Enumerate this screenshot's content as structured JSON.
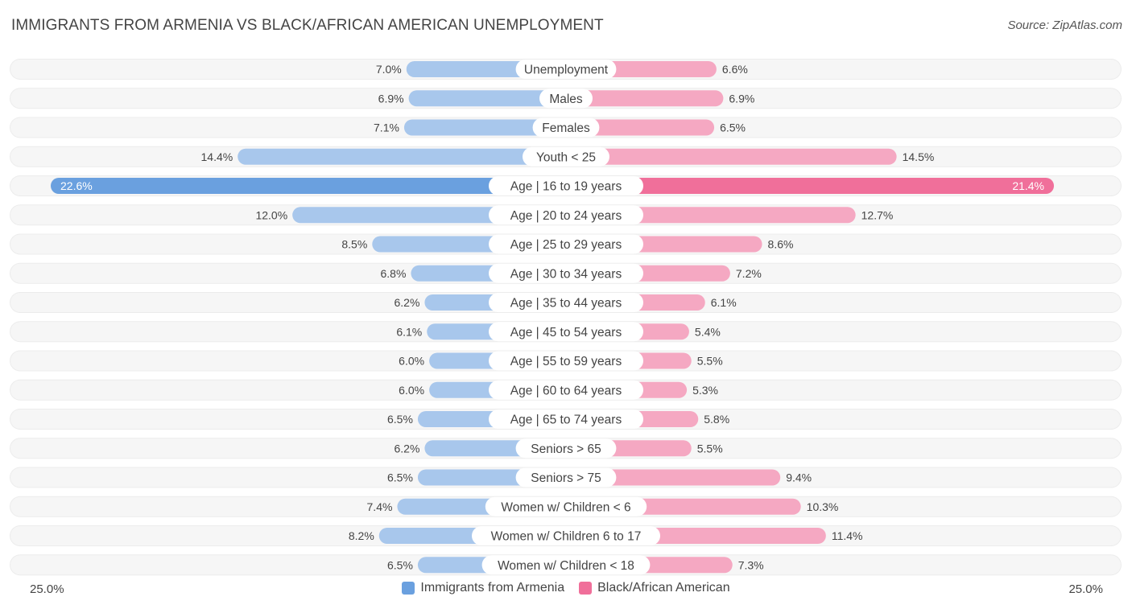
{
  "title": "IMMIGRANTS FROM ARMENIA VS BLACK/AFRICAN AMERICAN UNEMPLOYMENT",
  "source": "Source: ZipAtlas.com",
  "colors": {
    "left": "#a8c7ec",
    "left_strong": "#6aa0df",
    "right": "#f5a8c2",
    "right_strong": "#f06f9a",
    "row_bg": "#f1f1f1"
  },
  "chart_data": {
    "type": "bar",
    "orientation": "horizontal-diverging",
    "categories": [
      "Unemployment",
      "Males",
      "Females",
      "Youth < 25",
      "Age | 16 to 19 years",
      "Age | 20 to 24 years",
      "Age | 25 to 29 years",
      "Age | 30 to 34 years",
      "Age | 35 to 44 years",
      "Age | 45 to 54 years",
      "Age | 55 to 59 years",
      "Age | 60 to 64 years",
      "Age | 65 to 74 years",
      "Seniors > 65",
      "Seniors > 75",
      "Women w/ Children < 6",
      "Women w/ Children 6 to 17",
      "Women w/ Children < 18"
    ],
    "series": [
      {
        "name": "Immigrants from Armenia",
        "values": [
          7.0,
          6.9,
          7.1,
          14.4,
          22.6,
          12.0,
          8.5,
          6.8,
          6.2,
          6.1,
          6.0,
          6.0,
          6.5,
          6.2,
          6.5,
          7.4,
          8.2,
          6.5
        ],
        "labels": [
          "7.0%",
          "6.9%",
          "7.1%",
          "14.4%",
          "22.6%",
          "12.0%",
          "8.5%",
          "6.8%",
          "6.2%",
          "6.1%",
          "6.0%",
          "6.0%",
          "6.5%",
          "6.2%",
          "6.5%",
          "7.4%",
          "8.2%",
          "6.5%"
        ]
      },
      {
        "name": "Black/African American",
        "values": [
          6.6,
          6.9,
          6.5,
          14.5,
          21.4,
          12.7,
          8.6,
          7.2,
          6.1,
          5.4,
          5.5,
          5.3,
          5.8,
          5.5,
          9.4,
          10.3,
          11.4,
          7.3
        ],
        "labels": [
          "6.6%",
          "6.9%",
          "6.5%",
          "14.5%",
          "21.4%",
          "12.7%",
          "8.6%",
          "7.2%",
          "6.1%",
          "5.4%",
          "5.5%",
          "5.3%",
          "5.8%",
          "5.5%",
          "9.4%",
          "10.3%",
          "11.4%",
          "7.3%"
        ]
      }
    ],
    "xlim": [
      -25,
      25
    ],
    "axis_min_label": "25.0%",
    "axis_max_label": "25.0%",
    "legend_position": "bottom-center"
  }
}
